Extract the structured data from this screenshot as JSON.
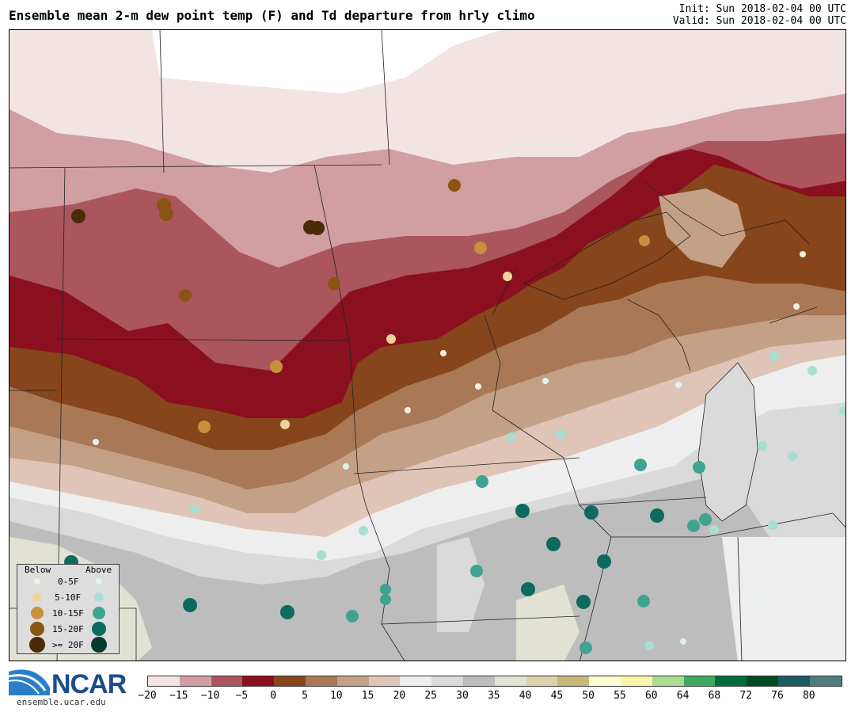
{
  "header": {
    "title": "Ensemble mean 2-m dew point temp (F) and Td departure from hrly climo",
    "init": "Init: Sun 2018-02-04 00 UTC",
    "valid": "Valid: Sun 2018-02-04 00 UTC"
  },
  "legend": {
    "below_label": "Below",
    "above_label": "Above",
    "rows": [
      {
        "label": "0-5F",
        "below_color": "#f7efdc",
        "above_color": "#dff2ee"
      },
      {
        "label": "5-10F",
        "below_color": "#f1d39a",
        "above_color": "#a8ded4"
      },
      {
        "label": "10-15F",
        "below_color": "#c98f3c",
        "above_color": "#3fa390"
      },
      {
        "label": "15-20F",
        "below_color": "#8a5413",
        "above_color": "#0c6b5e"
      },
      {
        "label": ">= 20F",
        "below_color": "#4a2b08",
        "above_color": "#053a2e"
      }
    ]
  },
  "colorbar": {
    "colors": [
      "#f3e4e4",
      "#d19ea2",
      "#ab555d",
      "#8a1020",
      "#86451a",
      "#a97857",
      "#c4a086",
      "#dfc5b7",
      "#eeeeee",
      "#dadada",
      "#bdbdbd",
      "#e1e2d3",
      "#ddd2aa",
      "#c9b67a",
      "#fcfcd1",
      "#fbf5ab",
      "#a9dc8e",
      "#3fa85e",
      "#006d3a",
      "#004a24",
      "#1e5a62",
      "#4e7d7e"
    ],
    "ticks": [
      "−20",
      "−15",
      "−10",
      "−5",
      "0",
      "5",
      "10",
      "15",
      "20",
      "25",
      "30",
      "35",
      "40",
      "45",
      "50",
      "55",
      "60",
      "64",
      "68",
      "72",
      "76",
      "80"
    ]
  },
  "logo": {
    "name": "NCAR",
    "url": "ensemble.ucar.edu"
  }
}
